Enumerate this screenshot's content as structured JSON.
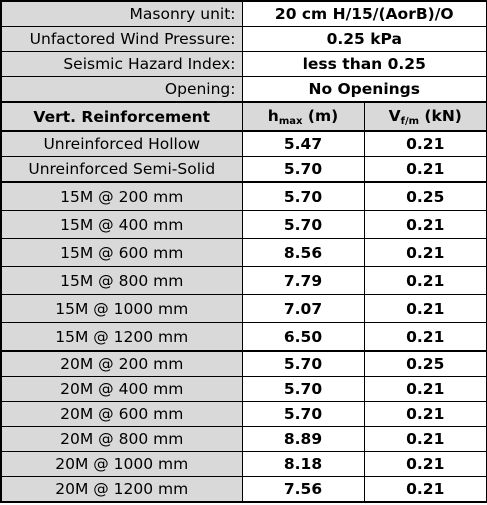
{
  "info": [
    {
      "label": "Masonry unit:",
      "value": "20 cm H/15/(AorB)/O"
    },
    {
      "label": "Unfactored Wind Pressure:",
      "value": "0.25 kPa"
    },
    {
      "label": "Seismic Hazard Index:",
      "value": "less than 0.25"
    },
    {
      "label": "Opening:",
      "value": "No Openings"
    }
  ],
  "header": {
    "col1": "Vert. Reinforcement",
    "col2_main": "h",
    "col2_sub": "max",
    "col2_unit": " (m)",
    "col3_main": "V",
    "col3_sub": "f/m",
    "col3_unit": " (kN)"
  },
  "groups": [
    {
      "rows": [
        {
          "name": "Unreinforced Hollow",
          "hmax": "5.47",
          "vfm": "0.21"
        },
        {
          "name": "Unreinforced Semi-Solid",
          "hmax": "5.70",
          "vfm": "0.21"
        }
      ]
    },
    {
      "rows": [
        {
          "name": "15M @ 200 mm",
          "hmax": "5.70",
          "vfm": "0.25"
        },
        {
          "name": "15M @ 400 mm",
          "hmax": "5.70",
          "vfm": "0.21"
        },
        {
          "name": "15M @ 600 mm",
          "hmax": "8.56",
          "vfm": "0.21"
        },
        {
          "name": "15M @ 800 mm",
          "hmax": "7.79",
          "vfm": "0.21"
        },
        {
          "name": "15M @ 1000 mm",
          "hmax": "7.07",
          "vfm": "0.21"
        },
        {
          "name": "15M @ 1200 mm",
          "hmax": "6.50",
          "vfm": "0.21"
        }
      ]
    },
    {
      "rows": [
        {
          "name": "20M @ 200 mm",
          "hmax": "5.70",
          "vfm": "0.25"
        },
        {
          "name": "20M @ 400 mm",
          "hmax": "5.70",
          "vfm": "0.21"
        },
        {
          "name": "20M @ 600 mm",
          "hmax": "5.70",
          "vfm": "0.21"
        },
        {
          "name": "20M @ 800 mm",
          "hmax": "8.89",
          "vfm": "0.21"
        },
        {
          "name": "20M @ 1000 mm",
          "hmax": "8.18",
          "vfm": "0.21"
        },
        {
          "name": "20M @ 1200 mm",
          "hmax": "7.56",
          "vfm": "0.21"
        }
      ]
    }
  ],
  "colors": {
    "label_fill": "#d9d9d9",
    "value_fill": "#ffffff",
    "border": "#000000"
  }
}
